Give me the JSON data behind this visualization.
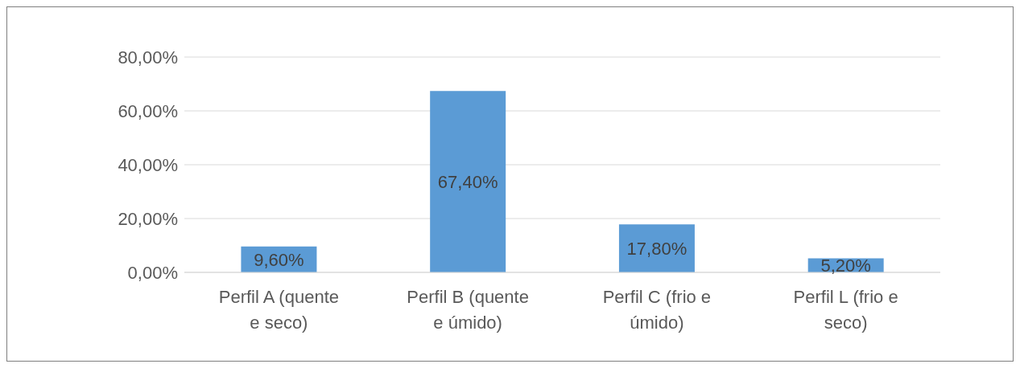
{
  "chart_data": {
    "type": "bar",
    "categories": [
      "Perfil A (quente e seco)",
      "Perfil B (quente e úmido)",
      "Perfil C (frio e úmido)",
      "Perfil L (frio e seco)"
    ],
    "values": [
      9.6,
      67.4,
      17.8,
      5.2
    ],
    "value_labels": [
      "9,60%",
      "67,40%",
      "17,80%",
      "5,20%"
    ],
    "color": "#5b9bd5",
    "ylim": [
      0,
      80
    ],
    "yticks": [
      {
        "value": 0,
        "label": "0,00%"
      },
      {
        "value": 20,
        "label": "20,00%"
      },
      {
        "value": 40,
        "label": "40,00%"
      },
      {
        "value": 60,
        "label": "60,00%"
      },
      {
        "value": 80,
        "label": "80,00%"
      }
    ],
    "grid": "y"
  }
}
